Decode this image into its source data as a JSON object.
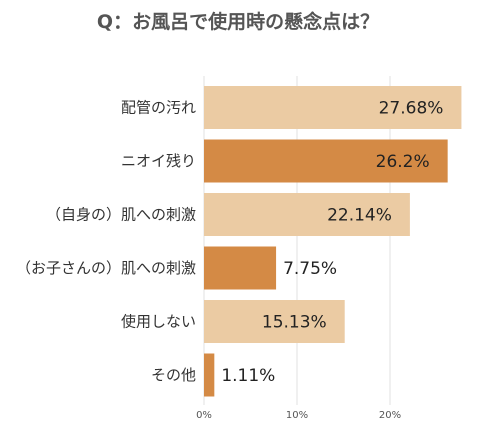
{
  "chart_data": {
    "type": "bar",
    "orientation": "horizontal",
    "title": "Q：お風呂で使用時の懸念点は？",
    "xlabel": "",
    "ylabel": "",
    "categories": [
      "配管の汚れ",
      "ニオイ残り",
      "（自身の）肌への刺激",
      "（お子さんの）肌への刺激",
      "使用しない",
      "その他"
    ],
    "values": [
      27.68,
      26.2,
      22.14,
      7.75,
      15.13,
      1.11
    ],
    "value_labels": [
      "27.68%",
      "26.2%",
      "22.14%",
      "7.75%",
      "15.13%",
      "1.11%"
    ],
    "xlim": [
      0,
      27.68
    ],
    "x_ticks": [
      {
        "value": 0,
        "label": "0%"
      },
      {
        "value": 10,
        "label": "10%"
      },
      {
        "value": 20,
        "label": "20%"
      }
    ],
    "grid": true,
    "legend": "none",
    "colors": {
      "bar_light": "#EBCBA3",
      "bar_dark": "#D48A45",
      "grid": "#E2E2E2",
      "axis_text": "#555555",
      "label_text": "#333333",
      "title_text": "#555555"
    }
  }
}
